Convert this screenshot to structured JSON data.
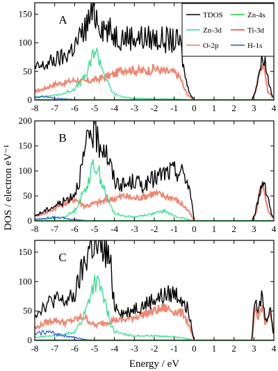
{
  "chart_data": {
    "type": "line",
    "xlabel": "Energy / eV",
    "ylabel": "DOS / electron eV⁻¹",
    "xlim": [
      -8,
      4
    ],
    "xticks": [
      "-8",
      "-7",
      "-6",
      "-5",
      "-4",
      "-3",
      "-2",
      "-1",
      "0",
      "1",
      "2",
      "3",
      "4"
    ],
    "legend": {
      "location": "top-right of panel A",
      "entries": [
        {
          "name": "TDOS",
          "color": "#000000"
        },
        {
          "name": "Zn-4s",
          "color": "#22cc44"
        },
        {
          "name": "Zn-3d",
          "color": "#2fe08a"
        },
        {
          "name": "Ti-3d",
          "color": "#e8453c"
        },
        {
          "name": "O-2p",
          "color": "#f07860"
        },
        {
          "name": "H-1s",
          "color": "#2255dd"
        }
      ]
    },
    "panels": [
      {
        "label": "A",
        "ylim": [
          0,
          170
        ],
        "yticks": [
          "0",
          "50",
          "100",
          "150"
        ],
        "series": [
          {
            "name": "TDOS",
            "x": [
              -8,
              -7.5,
              -7,
              -6.5,
              -6,
              -5.7,
              -5.4,
              -5.2,
              -5,
              -4.8,
              -4.6,
              -4.3,
              -4,
              -3.5,
              -3,
              -2.5,
              -2,
              -1.5,
              -1,
              -0.7,
              -0.5,
              -0.3,
              -0.1,
              0,
              2.9,
              3.1,
              3.3,
              3.5,
              3.7,
              3.9,
              4
            ],
            "y": [
              55,
              60,
              70,
              75,
              95,
              110,
              130,
              145,
              155,
              140,
              130,
              120,
              115,
              110,
              110,
              108,
              108,
              105,
              103,
              100,
              50,
              20,
              5,
              0,
              0,
              20,
              55,
              80,
              40,
              10,
              5
            ]
          },
          {
            "name": "Zn-3d",
            "x": [
              -8,
              -7,
              -6.5,
              -6,
              -5.7,
              -5.4,
              -5.2,
              -5,
              -4.8,
              -4.6,
              -4.4,
              -4.2,
              -4,
              -3.5,
              -3,
              -2,
              -1,
              -0.5,
              0,
              3,
              4
            ],
            "y": [
              5,
              8,
              12,
              20,
              30,
              45,
              65,
              90,
              75,
              55,
              35,
              20,
              10,
              5,
              3,
              2,
              2,
              1,
              0,
              0,
              0
            ]
          },
          {
            "name": "O-2p",
            "x": [
              -8,
              -7.5,
              -7,
              -6.5,
              -6,
              -5.5,
              -5,
              -4.5,
              -4,
              -3.5,
              -3,
              -2.5,
              -2,
              -1.5,
              -1,
              -0.7,
              -0.5,
              -0.3,
              0,
              2.9,
              3.1,
              3.3,
              3.5,
              3.7,
              4
            ],
            "y": [
              15,
              20,
              28,
              30,
              35,
              32,
              35,
              40,
              45,
              55,
              52,
              50,
              55,
              50,
              48,
              40,
              20,
              8,
              0,
              0,
              15,
              55,
              60,
              15,
              3
            ]
          },
          {
            "name": "H-1s",
            "x": [
              -8,
              -7.5,
              -7,
              -6.5,
              -6,
              -5,
              -4,
              0,
              4
            ],
            "y": [
              5,
              6,
              3,
              2,
              1,
              0,
              0,
              0,
              0
            ]
          }
        ]
      },
      {
        "label": "B",
        "ylim": [
          0,
          200
        ],
        "yticks": [
          "0",
          "50",
          "100",
          "150",
          "200"
        ],
        "series": [
          {
            "name": "TDOS",
            "x": [
              -8,
              -7.5,
              -7,
              -6.5,
              -6,
              -5.8,
              -5.5,
              -5.2,
              -5,
              -4.8,
              -4.5,
              -4.2,
              -4,
              -3.5,
              -3,
              -2.5,
              -2,
              -1.5,
              -1,
              -0.5,
              -0.2,
              0,
              2.9,
              3.1,
              3.3,
              3.5,
              3.7,
              3.9,
              4
            ],
            "y": [
              10,
              20,
              30,
              40,
              55,
              80,
              130,
              180,
              175,
              160,
              150,
              110,
              80,
              70,
              80,
              70,
              85,
              95,
              100,
              95,
              60,
              0,
              0,
              20,
              60,
              85,
              50,
              10,
              5
            ]
          },
          {
            "name": "Zn-3d",
            "x": [
              -8,
              -7,
              -6.5,
              -6,
              -5.7,
              -5.4,
              -5.2,
              -5,
              -4.8,
              -4.6,
              -4.4,
              -4.2,
              -4,
              -3.5,
              -3,
              -2,
              -1.5,
              -1,
              0,
              3,
              4
            ],
            "y": [
              3,
              5,
              8,
              20,
              45,
              70,
              95,
              115,
              100,
              75,
              50,
              30,
              15,
              10,
              8,
              15,
              20,
              10,
              0,
              0,
              0
            ]
          },
          {
            "name": "O-2p",
            "x": [
              -8,
              -7.5,
              -7,
              -6.5,
              -6,
              -5.5,
              -5,
              -4.5,
              -4,
              -3.5,
              -3,
              -2.5,
              -2,
              -1.5,
              -1,
              -0.5,
              -0.2,
              0,
              2.9,
              3.1,
              3.3,
              3.5,
              3.7,
              4
            ],
            "y": [
              10,
              15,
              25,
              35,
              45,
              30,
              35,
              40,
              45,
              50,
              45,
              50,
              55,
              50,
              45,
              30,
              15,
              0,
              0,
              15,
              60,
              70,
              20,
              3
            ]
          },
          {
            "name": "H-1s",
            "x": [
              -8,
              -7.5,
              -7,
              -6.5,
              -6,
              -5.5,
              -5,
              0,
              4
            ],
            "y": [
              3,
              5,
              8,
              5,
              3,
              1,
              0,
              0,
              0
            ]
          }
        ]
      },
      {
        "label": "C",
        "ylim": [
          0,
          170
        ],
        "yticks": [
          "0",
          "50",
          "100",
          "150"
        ],
        "series": [
          {
            "name": "TDOS",
            "x": [
              -8,
              -7.5,
              -7,
              -6.5,
              -6,
              -5.7,
              -5.4,
              -5.2,
              -5,
              -4.8,
              -4.5,
              -4.2,
              -4,
              -3.5,
              -3,
              -2.5,
              -2,
              -1.5,
              -1,
              -0.5,
              -0.2,
              0,
              2.9,
              3.05,
              3.2,
              3.4,
              3.6,
              3.8,
              4
            ],
            "y": [
              45,
              60,
              70,
              65,
              75,
              110,
              140,
              165,
              160,
              150,
              155,
              130,
              60,
              45,
              55,
              60,
              70,
              75,
              80,
              70,
              40,
              0,
              0,
              90,
              40,
              80,
              30,
              60,
              5
            ]
          },
          {
            "name": "Zn-3d",
            "x": [
              -8,
              -7,
              -6.5,
              -6,
              -5.7,
              -5.4,
              -5.2,
              -5,
              -4.8,
              -4.6,
              -4.4,
              -4.2,
              -4,
              -3.5,
              -3,
              -2,
              -1,
              -0.5,
              0,
              3,
              4
            ],
            "y": [
              5,
              8,
              10,
              15,
              30,
              55,
              80,
              100,
              95,
              80,
              55,
              30,
              15,
              10,
              8,
              8,
              6,
              4,
              0,
              0,
              0
            ]
          },
          {
            "name": "O-2p",
            "x": [
              -8,
              -7.5,
              -7,
              -6.5,
              -6,
              -5.5,
              -5,
              -4.5,
              -4,
              -3.5,
              -3,
              -2.5,
              -2,
              -1.5,
              -1,
              -0.5,
              -0.2,
              0,
              2.9,
              3.05,
              3.2,
              3.4,
              3.6,
              3.8,
              4
            ],
            "y": [
              20,
              30,
              35,
              30,
              35,
              40,
              25,
              30,
              35,
              35,
              40,
              45,
              50,
              55,
              50,
              45,
              20,
              0,
              0,
              50,
              35,
              60,
              25,
              50,
              5
            ]
          },
          {
            "name": "H-1s",
            "x": [
              -8,
              -7.5,
              -7,
              -6.5,
              -6,
              -5.5,
              -5,
              0,
              4
            ],
            "y": [
              10,
              15,
              12,
              8,
              5,
              2,
              0,
              0,
              0
            ]
          }
        ]
      }
    ]
  }
}
